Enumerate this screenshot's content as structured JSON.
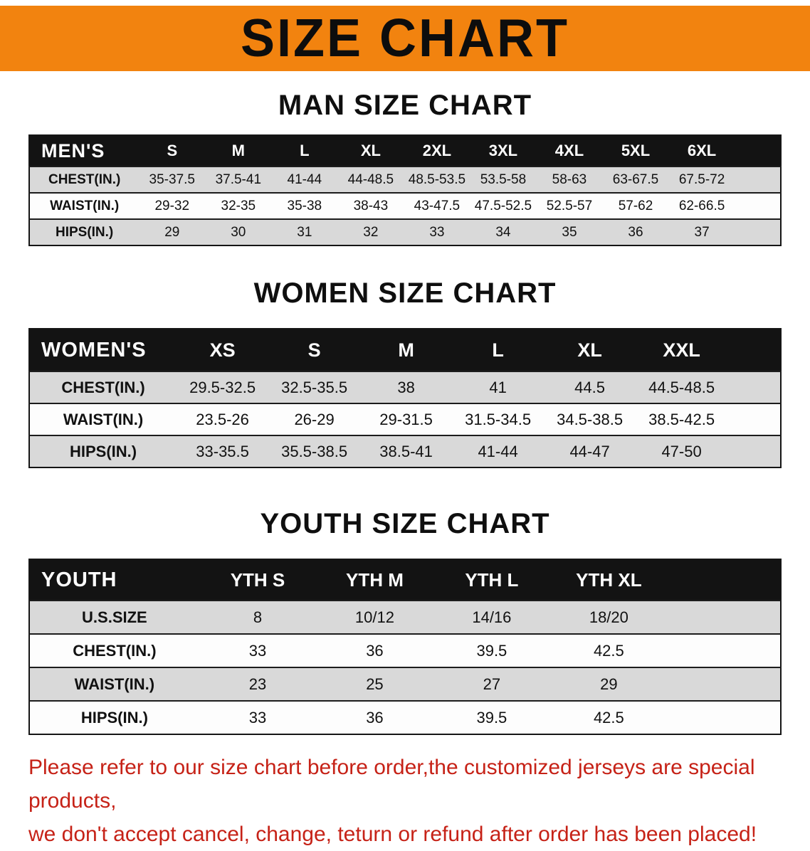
{
  "banner": {
    "title": "SIZE CHART",
    "bg_color": "#f2830f",
    "text_color": "#0d0d0d"
  },
  "sections": [
    {
      "id": "men",
      "heading": "MAN SIZE CHART",
      "table": {
        "header": [
          "MEN'S",
          "S",
          "M",
          "L",
          "XL",
          "2XL",
          "3XL",
          "4XL",
          "5XL",
          "6XL"
        ],
        "rows": [
          [
            "CHEST(IN.)",
            "35-37.5",
            "37.5-41",
            "41-44",
            "44-48.5",
            "48.5-53.5",
            "53.5-58",
            "58-63",
            "63-67.5",
            "67.5-72"
          ],
          [
            "WAIST(IN.)",
            "29-32",
            "32-35",
            "35-38",
            "38-43",
            "43-47.5",
            "47.5-52.5",
            "52.5-57",
            "57-62",
            "62-66.5"
          ],
          [
            "HIPS(IN.)",
            "29",
            "30",
            "31",
            "32",
            "33",
            "34",
            "35",
            "36",
            "37"
          ]
        ]
      }
    },
    {
      "id": "women",
      "heading": "WOMEN SIZE CHART",
      "table": {
        "header": [
          "WOMEN'S",
          "XS",
          "S",
          "M",
          "L",
          "XL",
          "XXL"
        ],
        "rows": [
          [
            "CHEST(IN.)",
            "29.5-32.5",
            "32.5-35.5",
            "38",
            "41",
            "44.5",
            "44.5-48.5"
          ],
          [
            "WAIST(IN.)",
            "23.5-26",
            "26-29",
            "29-31.5",
            "31.5-34.5",
            "34.5-38.5",
            "38.5-42.5"
          ],
          [
            "HIPS(IN.)",
            "33-35.5",
            "35.5-38.5",
            "38.5-41",
            "41-44",
            "44-47",
            "47-50"
          ]
        ]
      }
    },
    {
      "id": "youth",
      "heading": "YOUTH SIZE CHART",
      "table": {
        "header": [
          "YOUTH",
          "YTH S",
          "YTH M",
          "YTH L",
          "YTH XL"
        ],
        "rows": [
          [
            "U.S.SIZE",
            "8",
            "10/12",
            "14/16",
            "18/20"
          ],
          [
            "CHEST(IN.)",
            "33",
            "36",
            "39.5",
            "42.5"
          ],
          [
            "WAIST(IN.)",
            "23",
            "25",
            "27",
            "29"
          ],
          [
            "HIPS(IN.)",
            "33",
            "36",
            "39.5",
            "42.5"
          ]
        ]
      }
    }
  ],
  "footer": {
    "line1": "Please refer to our size chart before order,the customized jerseys are special products,",
    "line2": "we don't accept cancel, change, teturn or refund after order has been placed!",
    "text_color": "#c62217"
  },
  "colors": {
    "table_header_bg": "#131313",
    "table_row_alt_bg": "#d9d9d9",
    "table_row_bg": "#fdfdfd"
  }
}
